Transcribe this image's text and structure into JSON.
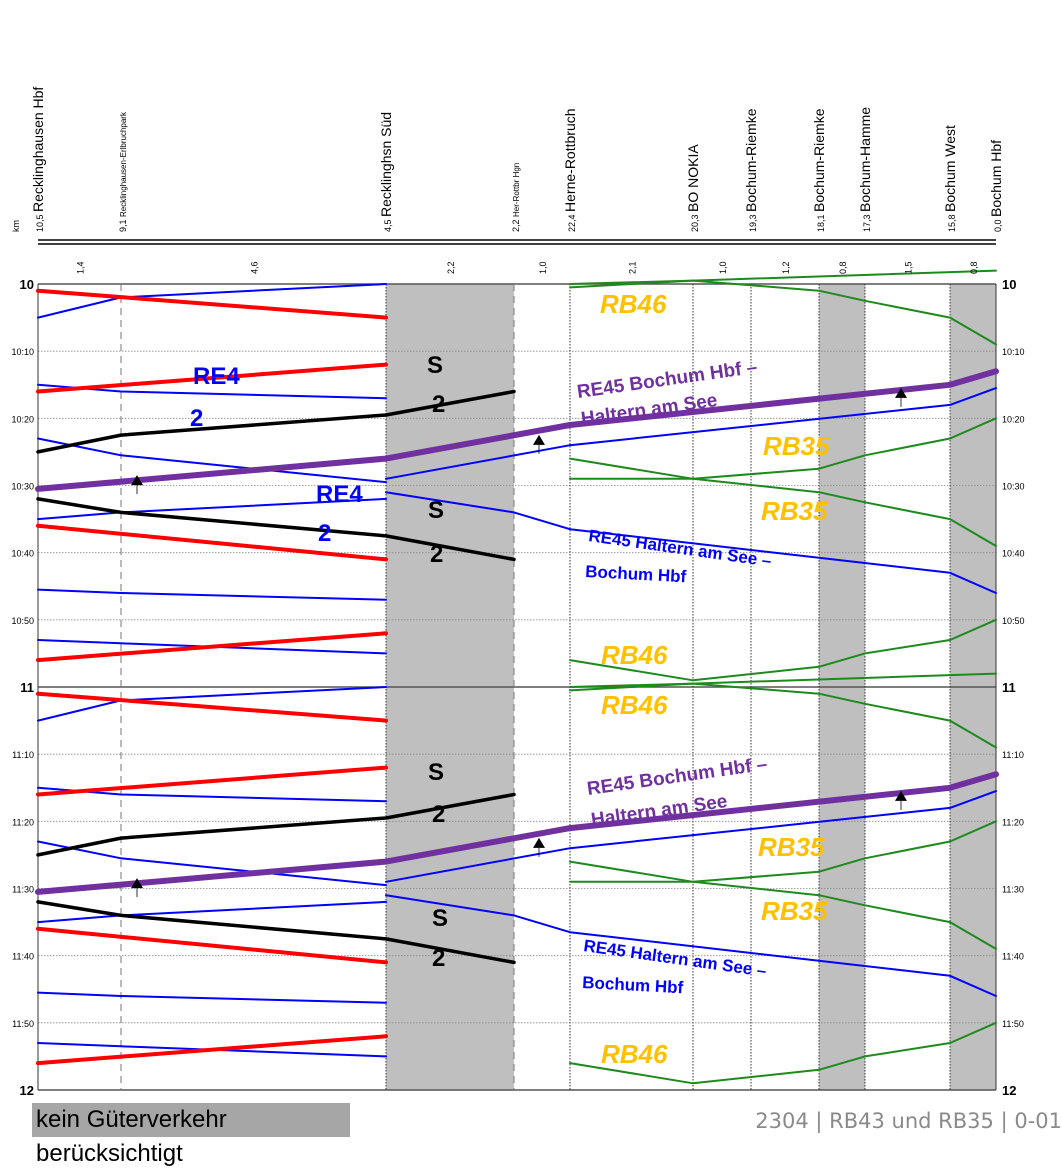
{
  "km_label": "km",
  "stations": [
    {
      "km": "10,5",
      "name": "Recklinghausen Hbf",
      "small": false
    },
    {
      "km": "9,1",
      "name": "Recklinghausen-Erlbruchpark",
      "small": true
    },
    {
      "km": "4,5",
      "name": "Recklinghsn Süd",
      "small": false
    },
    {
      "km": "2,2",
      "name": "Her-Rottbr Hgn",
      "small": true
    },
    {
      "km": "22,4",
      "name": "Herne-Rottbruch",
      "small": false
    },
    {
      "km": "20,3",
      "name": "BO NOKIA",
      "small": false
    },
    {
      "km": "19,3",
      "name": "Bochum-Riemke",
      "small": false
    },
    {
      "km": "18,1",
      "name": "Bochum-Riemke",
      "small": false
    },
    {
      "km": "17,3",
      "name": "Bochum-Hamme",
      "small": false
    },
    {
      "km": "15,8",
      "name": "Bochum West",
      "small": false
    },
    {
      "km": "0,0",
      "name": "Bochum Hbf",
      "small": false
    }
  ],
  "segment_distances": [
    "1,4",
    "4,6",
    "2,2",
    "1,0",
    "2,1",
    "1,0",
    "1,2",
    "0,8",
    "1,5",
    "0,8"
  ],
  "time_labels": [
    {
      "t": "10",
      "big": true
    },
    {
      "t": "10:10",
      "big": false
    },
    {
      "t": "10:20",
      "big": false
    },
    {
      "t": "10:30",
      "big": false
    },
    {
      "t": "10:40",
      "big": false
    },
    {
      "t": "10:50",
      "big": false
    },
    {
      "t": "11",
      "big": true
    },
    {
      "t": "11:10",
      "big": false
    },
    {
      "t": "11:20",
      "big": false
    },
    {
      "t": "11:30",
      "big": false
    },
    {
      "t": "11:40",
      "big": false
    },
    {
      "t": "11:50",
      "big": false
    },
    {
      "t": "12",
      "big": true
    }
  ],
  "train_labels": [
    {
      "text": "RB46",
      "color": "#ffc000"
    },
    {
      "text": "RE4",
      "color": "#0000ff"
    },
    {
      "text": "2",
      "color": "#0000ff"
    },
    {
      "text": "S",
      "color": "#000000"
    },
    {
      "text": "2",
      "color": "#000000"
    },
    {
      "text": "RE45 Bochum Hbf –",
      "color": "#7030a0"
    },
    {
      "text": "Haltern am See",
      "color": "#7030a0"
    },
    {
      "text": "RB35",
      "color": "#ffc000"
    },
    {
      "text": "RE4",
      "color": "#0000ff"
    },
    {
      "text": "2",
      "color": "#0000ff"
    },
    {
      "text": "S",
      "color": "#000000"
    },
    {
      "text": "2",
      "color": "#000000"
    },
    {
      "text": "RB35",
      "color": "#ffc000"
    },
    {
      "text": "RE45 Haltern am See –",
      "color": "#0000ff"
    },
    {
      "text": "Bochum Hbf",
      "color": "#0000ff"
    },
    {
      "text": "RB46",
      "color": "#ffc000"
    },
    {
      "text": "RB46",
      "color": "#ffc000"
    },
    {
      "text": "S",
      "color": "#000000"
    },
    {
      "text": "2",
      "color": "#000000"
    },
    {
      "text": "RE45 Bochum Hbf –",
      "color": "#7030a0"
    },
    {
      "text": "Haltern am See",
      "color": "#7030a0"
    },
    {
      "text": "RB35",
      "color": "#ffc000"
    },
    {
      "text": "S",
      "color": "#000000"
    },
    {
      "text": "2",
      "color": "#000000"
    },
    {
      "text": "RB35",
      "color": "#ffc000"
    },
    {
      "text": "RE45 Haltern am See –",
      "color": "#0000ff"
    },
    {
      "text": "Bochum Hbf",
      "color": "#0000ff"
    },
    {
      "text": "RB46",
      "color": "#ffc000"
    }
  ],
  "colors": {
    "re42": "#0000ff",
    "rb43": "#ff0000",
    "s2": "#000000",
    "re45_south": "#7030a0",
    "re45_north": "#0000ff",
    "green": "#1e8a1e",
    "rb_label": "#ffc000",
    "shade": "#bfbfbf"
  },
  "footer": {
    "note": "kein Güterverkehr berücksichtigt",
    "id": "2304 | RB43 und RB35 | 0-01"
  }
}
